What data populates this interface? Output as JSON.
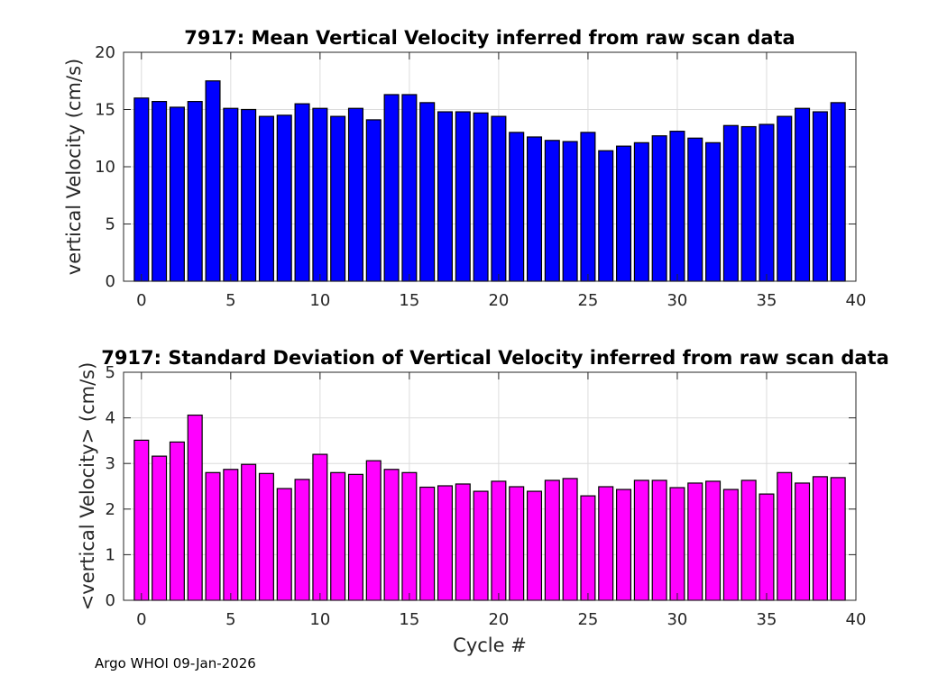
{
  "chart_data": [
    {
      "type": "bar",
      "title": "7917: Mean Vertical Velocity inferred from raw scan data",
      "xlabel": "",
      "ylabel": "vertical Velocity (cm/s)",
      "xlim": [
        -1,
        40
      ],
      "ylim": [
        0,
        20
      ],
      "xticks": [
        "0",
        "5",
        "10",
        "15",
        "20",
        "25",
        "30",
        "35",
        "40"
      ],
      "yticks": [
        "0",
        "5",
        "10",
        "15",
        "20"
      ],
      "grid": true,
      "color": "#0000ff",
      "x": [
        0,
        1,
        2,
        3,
        4,
        5,
        6,
        7,
        8,
        9,
        10,
        11,
        12,
        13,
        14,
        15,
        16,
        17,
        18,
        19,
        20,
        21,
        22,
        23,
        24,
        25,
        26,
        27,
        28,
        29,
        30,
        31,
        32,
        33,
        34,
        35,
        36,
        37,
        38,
        39
      ],
      "values": [
        16.0,
        15.7,
        15.2,
        15.7,
        17.5,
        15.1,
        15.0,
        14.4,
        14.5,
        15.5,
        15.1,
        14.4,
        15.1,
        14.1,
        16.3,
        16.3,
        15.6,
        14.8,
        14.8,
        14.7,
        14.4,
        13.0,
        12.6,
        12.3,
        12.2,
        13.0,
        11.4,
        11.8,
        12.1,
        12.7,
        13.1,
        12.5,
        12.1,
        13.6,
        13.5,
        13.7,
        14.4,
        15.1,
        14.8,
        15.6
      ]
    },
    {
      "type": "bar",
      "title": "7917: Standard Deviation of Vertical Velocity inferred from raw scan data",
      "xlabel": "Cycle #",
      "ylabel": "<vertical Velocity> (cm/s)",
      "xlim": [
        -1,
        40
      ],
      "ylim": [
        0,
        5
      ],
      "xticks": [
        "0",
        "5",
        "10",
        "15",
        "20",
        "25",
        "30",
        "35",
        "40"
      ],
      "yticks": [
        "0",
        "1",
        "2",
        "3",
        "4",
        "5"
      ],
      "grid": true,
      "color": "#ff00ff",
      "x": [
        0,
        1,
        2,
        3,
        4,
        5,
        6,
        7,
        8,
        9,
        10,
        11,
        12,
        13,
        14,
        15,
        16,
        17,
        18,
        19,
        20,
        21,
        22,
        23,
        24,
        25,
        26,
        27,
        28,
        29,
        30,
        31,
        32,
        33,
        34,
        35,
        36,
        37,
        38,
        39
      ],
      "values": [
        3.51,
        3.16,
        3.47,
        4.06,
        2.8,
        2.87,
        2.98,
        2.78,
        2.45,
        2.65,
        3.2,
        2.8,
        2.76,
        3.06,
        2.87,
        2.8,
        2.48,
        2.51,
        2.55,
        2.39,
        2.61,
        2.49,
        2.39,
        2.63,
        2.67,
        2.29,
        2.49,
        2.43,
        2.63,
        2.63,
        2.47,
        2.57,
        2.61,
        2.43,
        2.63,
        2.33,
        2.8,
        2.57,
        2.71,
        2.69
      ]
    }
  ],
  "footer": "Argo WHOI 09-Jan-2026"
}
